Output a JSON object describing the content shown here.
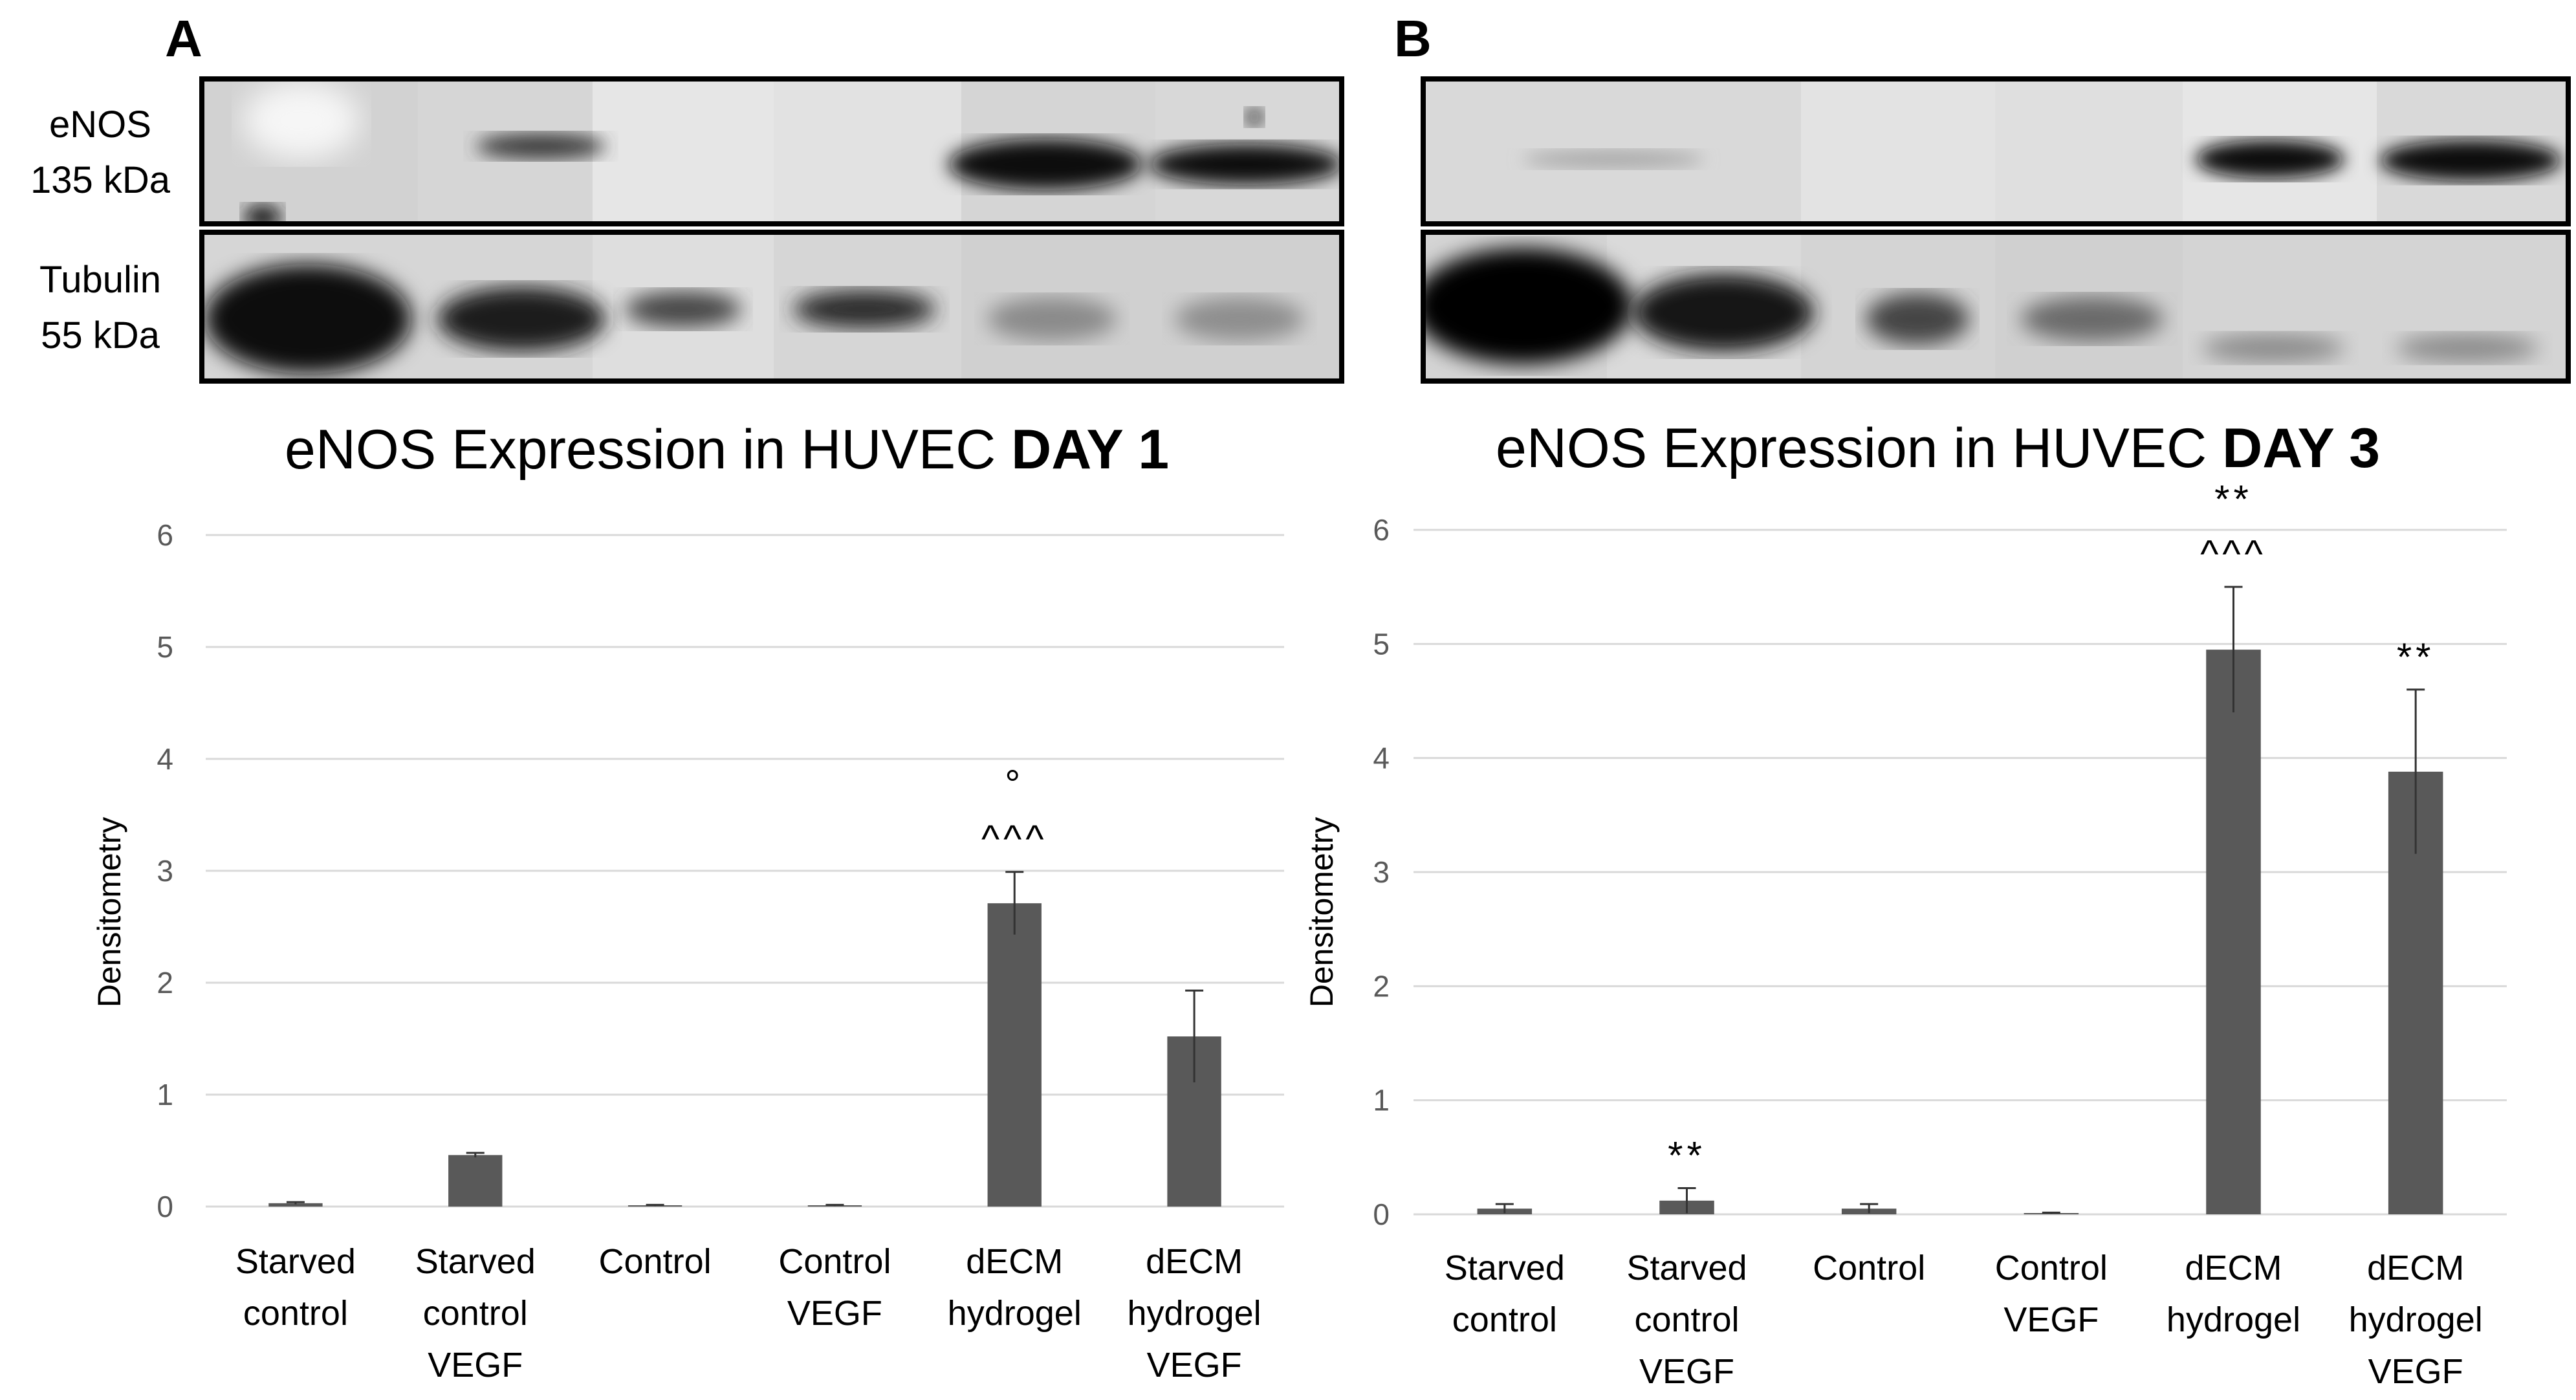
{
  "panels": [
    {
      "letter": "A"
    },
    {
      "letter": "B"
    }
  ],
  "blot_labels": {
    "enos_line1": "eNOS",
    "enos_line2": "135 kDa",
    "tubulin_line1": "Tubulin",
    "tubulin_line2": "55 kDa"
  },
  "colors": {
    "bar": "#595959",
    "grid": "#d9d9d9",
    "axis_text": "#595959"
  },
  "chart_data": [
    {
      "type": "bar",
      "title_prefix": "eNOS Expression in HUVEC ",
      "title_bold": "DAY 1",
      "ylabel": "Densitometry",
      "ylim": [
        0,
        6
      ],
      "yticks": [
        0,
        1,
        2,
        3,
        4,
        5,
        6
      ],
      "grid": true,
      "categories": [
        [
          "Starved",
          "control"
        ],
        [
          "Starved",
          "control",
          "VEGF"
        ],
        [
          "Control"
        ],
        [
          "Control",
          "VEGF"
        ],
        [
          "dECM",
          "hydrogel"
        ],
        [
          "dECM",
          "hydrogel",
          "VEGF"
        ]
      ],
      "values": [
        0.03,
        0.46,
        0.01,
        0.01,
        2.71,
        1.52
      ],
      "errors": [
        0.01,
        0.02,
        0.005,
        0.005,
        0.28,
        0.41
      ],
      "annotations": [
        {
          "index": 4,
          "lines": [
            "°",
            "^^^"
          ]
        }
      ]
    },
    {
      "type": "bar",
      "title_prefix": "eNOS Expression in HUVEC ",
      "title_bold": "DAY 3",
      "ylabel": "Densitometry",
      "ylim": [
        0,
        6
      ],
      "yticks": [
        0,
        1,
        2,
        3,
        4,
        5,
        6
      ],
      "grid": true,
      "categories": [
        [
          "Starved",
          "control"
        ],
        [
          "Starved",
          "control",
          "VEGF"
        ],
        [
          "Control"
        ],
        [
          "Control",
          "VEGF"
        ],
        [
          "dECM",
          "hydrogel"
        ],
        [
          "dECM",
          "hydrogel",
          "VEGF"
        ]
      ],
      "values": [
        0.05,
        0.12,
        0.05,
        0.01,
        4.95,
        3.88
      ],
      "errors": [
        0.04,
        0.11,
        0.04,
        0.005,
        0.55,
        0.72
      ],
      "annotations": [
        {
          "index": 1,
          "lines": [
            "**"
          ]
        },
        {
          "index": 4,
          "lines": [
            "**",
            "^^^"
          ]
        },
        {
          "index": 5,
          "lines": [
            "**"
          ]
        }
      ]
    }
  ]
}
